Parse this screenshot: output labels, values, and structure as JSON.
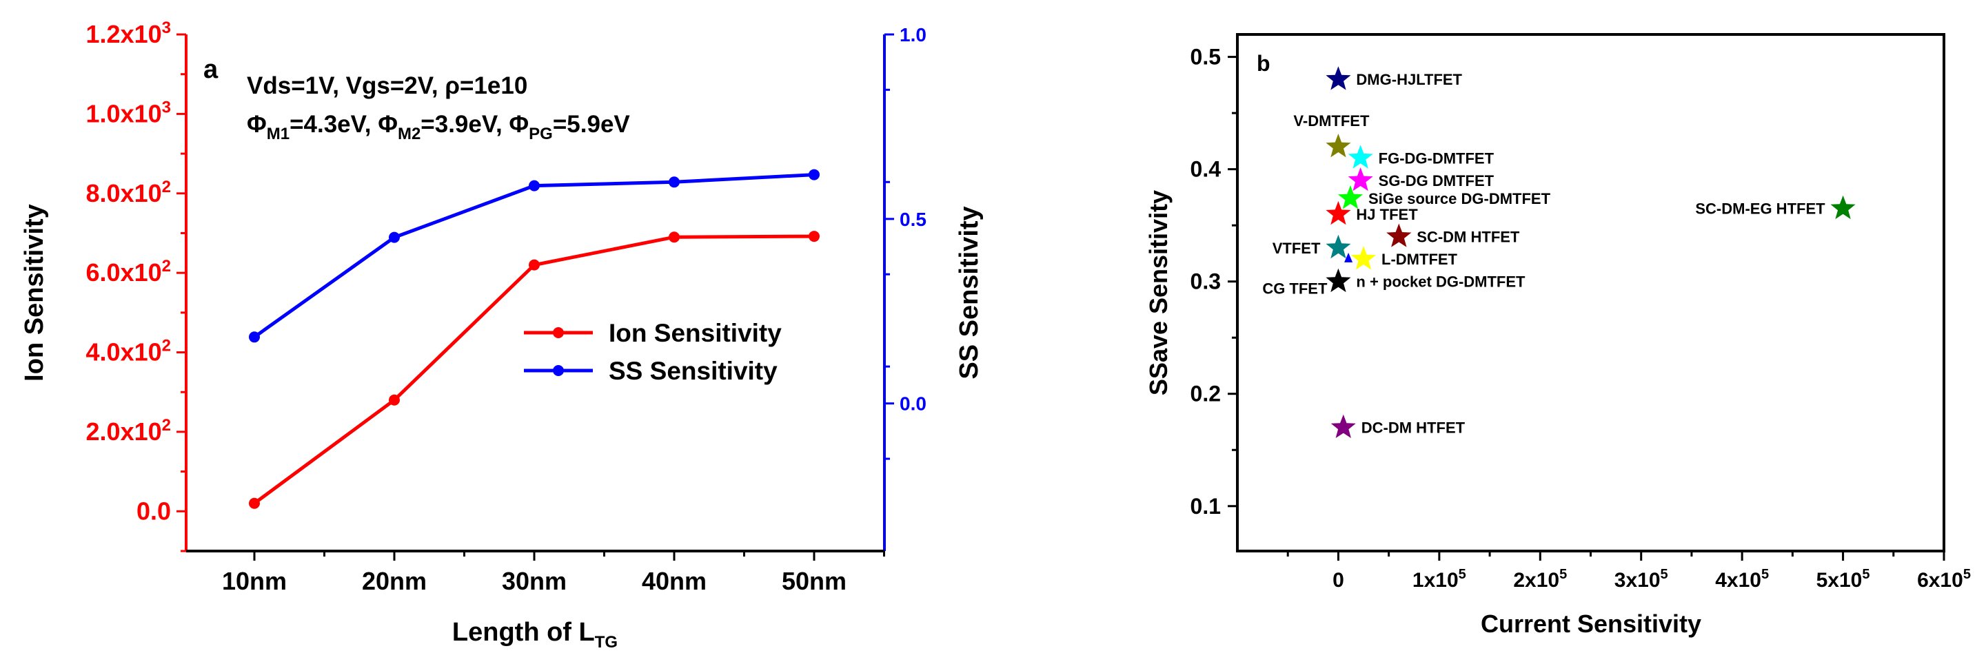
{
  "chart_data": [
    {
      "panel_label": "a",
      "type": "line",
      "categories": [
        "10nm",
        "20nm",
        "30nm",
        "40nm",
        "50nm"
      ],
      "xlabel_main": "Length of L",
      "xlabel_sub": "TG",
      "ylabel_left": "Ion Sensitivity",
      "ylabel_right": "SS Sensitivity",
      "ylim_left": [
        -100,
        1200
      ],
      "ylim_right": [
        -0.4,
        1.0
      ],
      "left_ticks": [
        {
          "v": 0,
          "m": "0.0",
          "e": ""
        },
        {
          "v": 200,
          "m": "2.0x10",
          "e": "2"
        },
        {
          "v": 400,
          "m": "4.0x10",
          "e": "2"
        },
        {
          "v": 600,
          "m": "6.0x10",
          "e": "2"
        },
        {
          "v": 800,
          "m": "8.0x10",
          "e": "2"
        },
        {
          "v": 1000,
          "m": "1.0x10",
          "e": "3"
        },
        {
          "v": 1200,
          "m": "1.2x10",
          "e": "3"
        }
      ],
      "right_ticks": [
        {
          "v": 0.0,
          "label": "0.0"
        },
        {
          "v": 0.5,
          "label": "0.5"
        },
        {
          "v": 1.0,
          "label": "1.0"
        }
      ],
      "annotation_line1": "Vds=1V, Vgs=2V, ρ=1e10",
      "annotation_line2": [
        {
          "t": "Φ"
        },
        {
          "t": "M1",
          "sub": true
        },
        {
          "t": "=4.3eV, Φ"
        },
        {
          "t": "M2",
          "sub": true
        },
        {
          "t": "=3.9eV, Φ"
        },
        {
          "t": "PG",
          "sub": true
        },
        {
          "t": "=5.9eV"
        }
      ],
      "series": [
        {
          "name": "Ion Sensitivity",
          "axis": "left",
          "color": "#ff0000",
          "values": [
            20,
            280,
            620,
            690,
            692
          ]
        },
        {
          "name": "SS Sensitivity",
          "axis": "right",
          "color": "#0000ff",
          "values": [
            0.18,
            0.45,
            0.59,
            0.6,
            0.62
          ]
        }
      ],
      "axis_colors": {
        "left": "#ff0000",
        "right": "#0000ff",
        "bottom": "#000000"
      }
    },
    {
      "panel_label": "b",
      "type": "scatter",
      "xlabel": "Current Sensitivity",
      "ylabel": "SSave Sensitivity",
      "xlim": [
        -100000,
        600000
      ],
      "ylim": [
        0.06,
        0.52
      ],
      "x_ticks": [
        {
          "v": 0,
          "m": "0",
          "e": ""
        },
        {
          "v": 100000,
          "m": "1x10",
          "e": "5"
        },
        {
          "v": 200000,
          "m": "2x10",
          "e": "5"
        },
        {
          "v": 300000,
          "m": "3x10",
          "e": "5"
        },
        {
          "v": 400000,
          "m": "4x10",
          "e": "5"
        },
        {
          "v": 500000,
          "m": "5x10",
          "e": "5"
        },
        {
          "v": 600000,
          "m": "6x10",
          "e": "5"
        }
      ],
      "y_ticks": [
        {
          "v": 0.1,
          "label": "0.1"
        },
        {
          "v": 0.2,
          "label": "0.2"
        },
        {
          "v": 0.3,
          "label": "0.3"
        },
        {
          "v": 0.4,
          "label": "0.4"
        },
        {
          "v": 0.5,
          "label": "0.5"
        }
      ],
      "points": [
        {
          "name": "DMG-HJLTFET",
          "x": 0,
          "y": 0.48,
          "color": "#000080",
          "label_side": "right"
        },
        {
          "name": "V-DMTFET",
          "x": 0,
          "y": 0.42,
          "color": "#808000",
          "label_side": "above"
        },
        {
          "name": "FG-DG-DMTFET",
          "x": 22000,
          "y": 0.41,
          "color": "#00ffff",
          "label_side": "right"
        },
        {
          "name": "SG-DG DMTFET",
          "x": 22000,
          "y": 0.39,
          "color": "#ff00ff",
          "label_side": "right"
        },
        {
          "name": "SiGe source  DG-DMTFET",
          "x": 12000,
          "y": 0.374,
          "color": "#00ff00",
          "label_side": "right"
        },
        {
          "name": "HJ TFET",
          "x": 0,
          "y": 0.36,
          "color": "#ff0000",
          "label_side": "right"
        },
        {
          "name": "SC-DM HTFET",
          "x": 60000,
          "y": 0.34,
          "color": "#8b0000",
          "label_side": "right"
        },
        {
          "name": "SC-DM-EG HTFET",
          "x": 500000,
          "y": 0.365,
          "color": "#008000",
          "label_side": "left"
        },
        {
          "name": "VTFET",
          "x": 0,
          "y": 0.33,
          "color": "#008080",
          "label_side": "left"
        },
        {
          "name": "L-DMTFET",
          "x": 25000,
          "y": 0.32,
          "color": "#ffff00",
          "label_side": "right"
        },
        {
          "name": "n + pocket DG-DMTFET",
          "x": 0,
          "y": 0.3,
          "color": "#000000",
          "label_side": "right"
        },
        {
          "name": "CG TFET",
          "x": 0,
          "y": 0.3,
          "color": "#000000",
          "label_side": "left_below"
        },
        {
          "name": "DC-DM HTFET",
          "x": 5000,
          "y": 0.17,
          "color": "#800080",
          "label_side": "right"
        }
      ]
    }
  ]
}
